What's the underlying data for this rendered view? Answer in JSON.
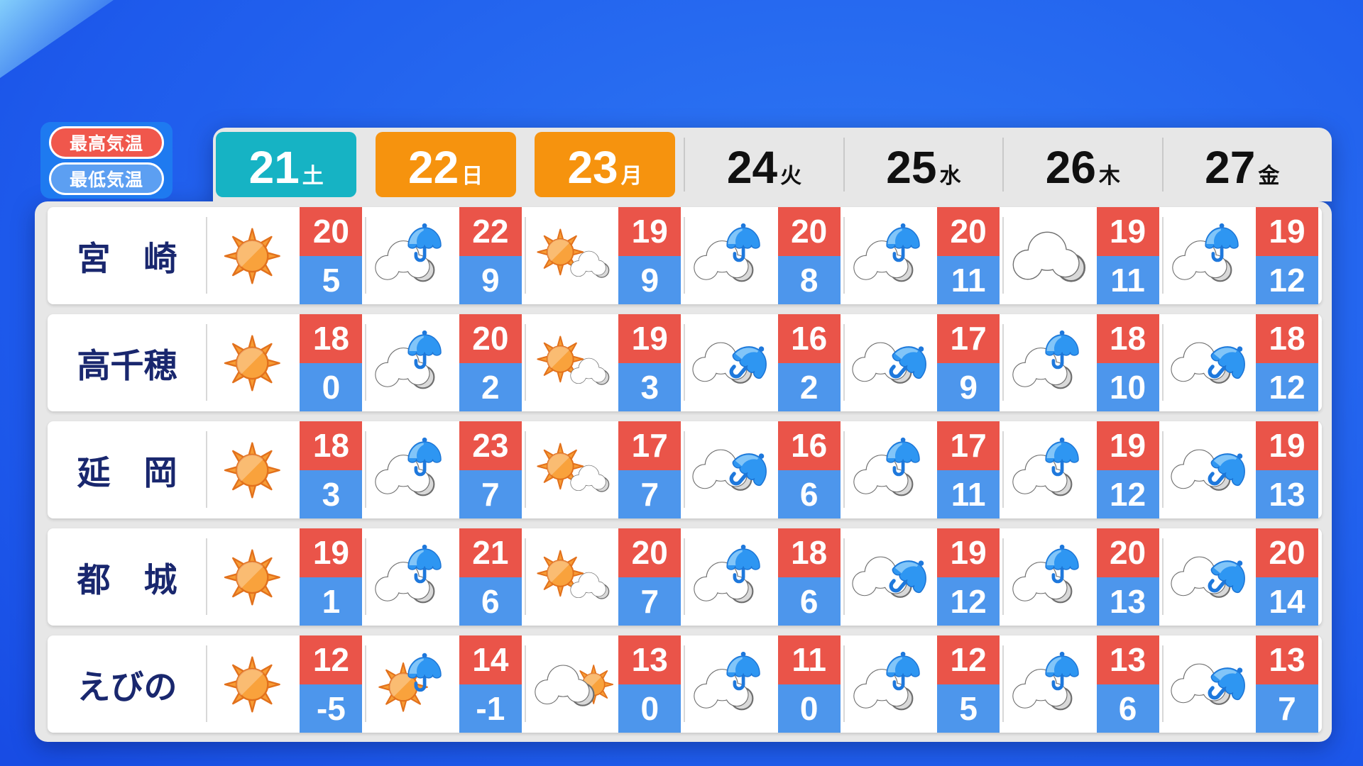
{
  "legend": {
    "high_label": "最高気温",
    "low_label": "最低気温"
  },
  "header": {
    "days": [
      {
        "date": "21",
        "dow": "土",
        "style": "sat"
      },
      {
        "date": "22",
        "dow": "日",
        "style": "sun"
      },
      {
        "date": "23",
        "dow": "月",
        "style": "sun"
      },
      {
        "date": "24",
        "dow": "火",
        "style": "plain"
      },
      {
        "date": "25",
        "dow": "水",
        "style": "plain"
      },
      {
        "date": "26",
        "dow": "木",
        "style": "plain"
      },
      {
        "date": "27",
        "dow": "金",
        "style": "plain"
      }
    ]
  },
  "rows": [
    {
      "city": "宮　崎",
      "cells": [
        {
          "icon": "sunny",
          "high": "20",
          "low": "5"
        },
        {
          "icon": "cloud-umbrella",
          "high": "22",
          "low": "9"
        },
        {
          "icon": "sun-cloud",
          "high": "19",
          "low": "9"
        },
        {
          "icon": "cloud-umbrella",
          "high": "20",
          "low": "8"
        },
        {
          "icon": "cloud-umbrella",
          "high": "20",
          "low": "11"
        },
        {
          "icon": "cloudy",
          "high": "19",
          "low": "11"
        },
        {
          "icon": "cloud-umbrella",
          "high": "19",
          "low": "12"
        }
      ]
    },
    {
      "city": "高千穂",
      "cells": [
        {
          "icon": "sunny",
          "high": "18",
          "low": "0"
        },
        {
          "icon": "cloud-umbrella",
          "high": "20",
          "low": "2"
        },
        {
          "icon": "sun-cloud",
          "high": "19",
          "low": "3"
        },
        {
          "icon": "cloud-umbrella-tilt",
          "high": "16",
          "low": "2"
        },
        {
          "icon": "cloud-umbrella-tilt",
          "high": "17",
          "low": "9"
        },
        {
          "icon": "cloud-umbrella",
          "high": "18",
          "low": "10"
        },
        {
          "icon": "cloud-umbrella-tilt",
          "high": "18",
          "low": "12"
        }
      ]
    },
    {
      "city": "延　岡",
      "cells": [
        {
          "icon": "sunny",
          "high": "18",
          "low": "3"
        },
        {
          "icon": "cloud-umbrella",
          "high": "23",
          "low": "7"
        },
        {
          "icon": "sun-cloud",
          "high": "17",
          "low": "7"
        },
        {
          "icon": "cloud-umbrella-tilt",
          "high": "16",
          "low": "6"
        },
        {
          "icon": "cloud-umbrella",
          "high": "17",
          "low": "11"
        },
        {
          "icon": "cloud-umbrella",
          "high": "19",
          "low": "12"
        },
        {
          "icon": "cloud-umbrella-tilt",
          "high": "19",
          "low": "13"
        }
      ]
    },
    {
      "city": "都　城",
      "cells": [
        {
          "icon": "sunny",
          "high": "19",
          "low": "1"
        },
        {
          "icon": "cloud-umbrella",
          "high": "21",
          "low": "6"
        },
        {
          "icon": "sun-cloud",
          "high": "20",
          "low": "7"
        },
        {
          "icon": "cloud-umbrella",
          "high": "18",
          "low": "6"
        },
        {
          "icon": "cloud-umbrella-tilt",
          "high": "19",
          "low": "12"
        },
        {
          "icon": "cloud-umbrella",
          "high": "20",
          "low": "13"
        },
        {
          "icon": "cloud-umbrella-tilt",
          "high": "20",
          "low": "14"
        }
      ]
    },
    {
      "city": "えびの",
      "cells": [
        {
          "icon": "sunny",
          "high": "12",
          "low": "-5"
        },
        {
          "icon": "sun-umbrella",
          "high": "14",
          "low": "-1"
        },
        {
          "icon": "cloud-sun",
          "high": "13",
          "low": "0"
        },
        {
          "icon": "cloud-umbrella",
          "high": "11",
          "low": "0"
        },
        {
          "icon": "cloud-umbrella",
          "high": "12",
          "low": "5"
        },
        {
          "icon": "cloud-umbrella",
          "high": "13",
          "low": "6"
        },
        {
          "icon": "cloud-umbrella-tilt",
          "high": "13",
          "low": "7"
        }
      ]
    }
  ],
  "colors": {
    "high_temp": "#EA5449",
    "low_temp": "#4D96EC",
    "saturday_box": "#16B3C4",
    "sunday_holiday_box": "#F6930E",
    "legend_box": "#1E7AF0",
    "legend_high": "#F0574C",
    "legend_low": "#5C9FF2",
    "panel_gray": "#E7E7E7",
    "city_navy": "#19276E"
  }
}
